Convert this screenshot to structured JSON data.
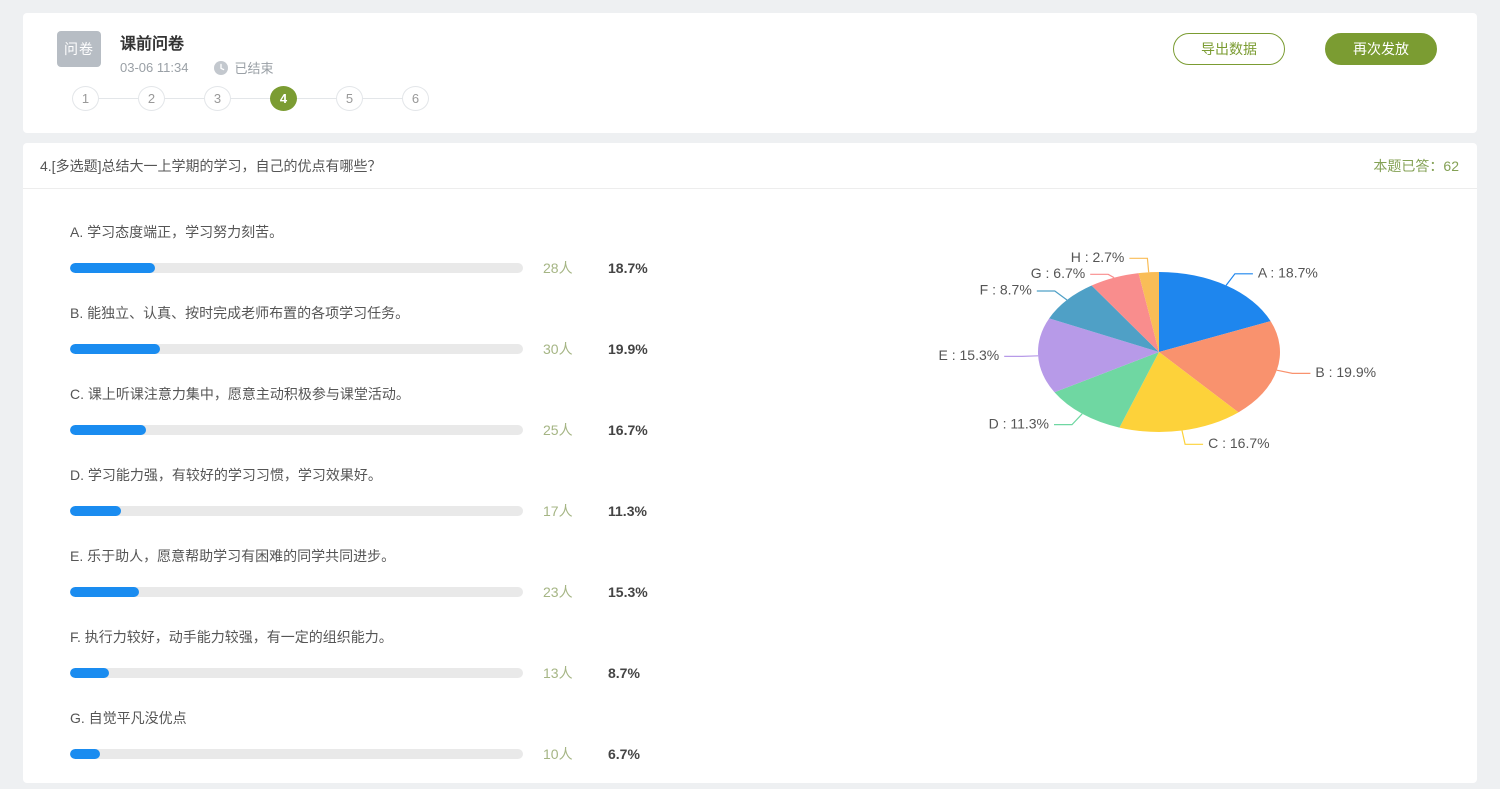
{
  "header": {
    "badge": "问卷",
    "title": "课前问卷",
    "datetime": "03-06 11:34",
    "status": "已结束",
    "export_button": "导出数据",
    "resend_button": "再次发放"
  },
  "stepper": {
    "steps": [
      "1",
      "2",
      "3",
      "4",
      "5",
      "6"
    ],
    "active": "4"
  },
  "question": {
    "title": "4.[多选题]总结大一上学期的学习，自己的优点有哪些？",
    "answered_label": "本题已答：62",
    "options": [
      {
        "label": "A. 学习态度端正，学习努力刻苦。",
        "count": "28人",
        "pct": "18.7%",
        "value": 18.7
      },
      {
        "label": "B. 能独立、认真、按时完成老师布置的各项学习任务。",
        "count": "30人",
        "pct": "19.9%",
        "value": 19.9
      },
      {
        "label": "C. 课上听课注意力集中，愿意主动积极参与课堂活动。",
        "count": "25人",
        "pct": "16.7%",
        "value": 16.7
      },
      {
        "label": "D. 学习能力强，有较好的学习习惯，学习效果好。",
        "count": "17人",
        "pct": "11.3%",
        "value": 11.3
      },
      {
        "label": "E. 乐于助人，愿意帮助学习有困难的同学共同进步。",
        "count": "23人",
        "pct": "15.3%",
        "value": 15.3
      },
      {
        "label": "F. 执行力较好，动手能力较强，有一定的组织能力。",
        "count": "13人",
        "pct": "8.7%",
        "value": 8.7
      },
      {
        "label": "G. 自觉平凡没优点",
        "count": "10人",
        "pct": "6.7%",
        "value": 6.7
      }
    ]
  },
  "chart_data": {
    "type": "pie",
    "labels": [
      "A",
      "B",
      "C",
      "D",
      "E",
      "F",
      "G",
      "H"
    ],
    "values": [
      18.7,
      19.9,
      16.7,
      11.3,
      15.3,
      8.7,
      6.7,
      2.7
    ],
    "unit": "%",
    "colors": [
      "#1e86ee",
      "#f9926e",
      "#fdd23a",
      "#6fd7a2",
      "#b79ae8",
      "#4fa0c6",
      "#f98d8d",
      "#f9bd57"
    ],
    "label_separator": " : ",
    "legend_position": "none",
    "shape": "ellipse"
  },
  "theme": {
    "accent_green": "#7b9c32",
    "bar_blue": "#1a8cf0",
    "bar_track": "#e9e9e9",
    "count_green": "#a5b584",
    "badge_gray": "#b7bdc4"
  }
}
